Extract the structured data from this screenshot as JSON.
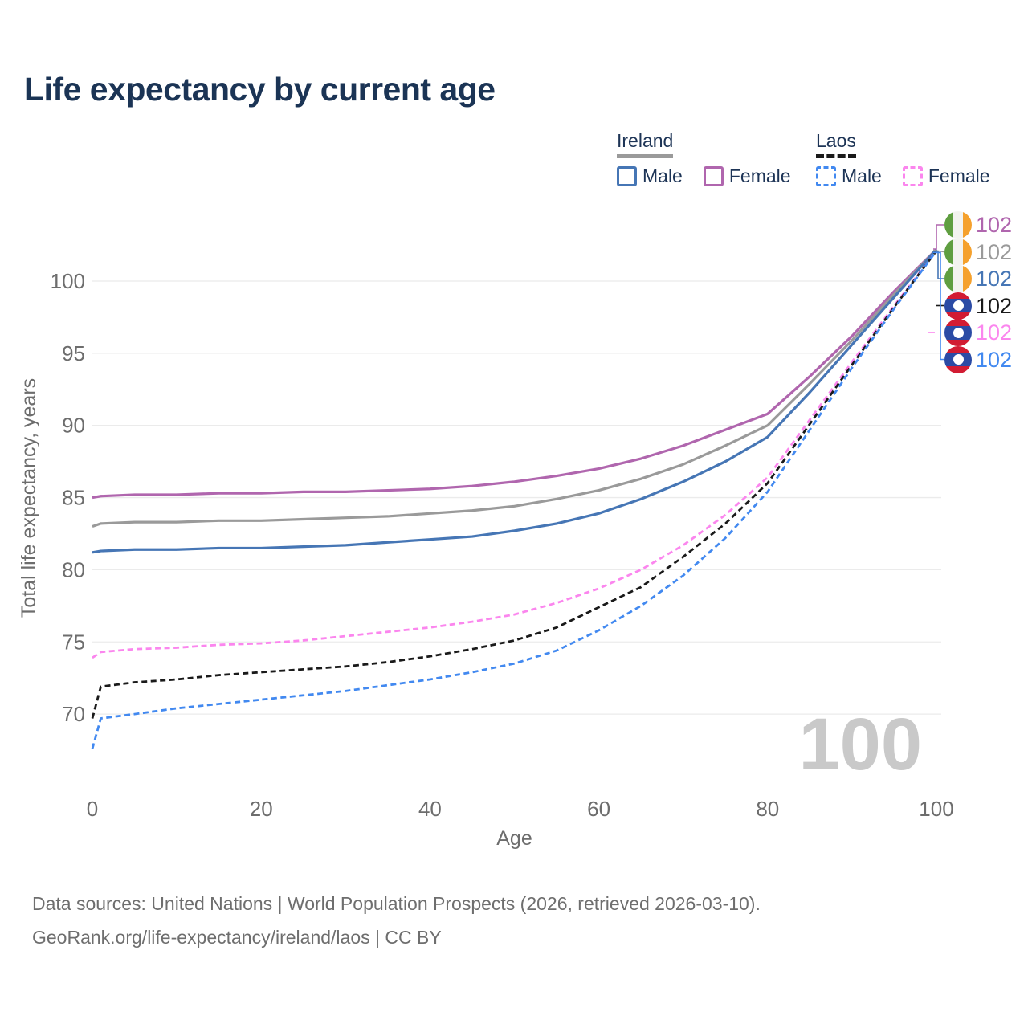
{
  "header": {
    "title": "Life expectancy by current age"
  },
  "legend": {
    "groups": [
      {
        "label": "Ireland",
        "underline_color": "#9a9a9a",
        "underline_style": "solid",
        "items": [
          {
            "label": "Male",
            "color": "#4676b5",
            "dashed": false
          },
          {
            "label": "Female",
            "color": "#b066ae",
            "dashed": false
          }
        ]
      },
      {
        "label": "Laos",
        "underline_color": "#1a1a1a",
        "underline_style": "dashed",
        "items": [
          {
            "label": "Male",
            "color": "#4289f0",
            "dashed": true
          },
          {
            "label": "Female",
            "color": "#fb86ee",
            "dashed": true
          }
        ]
      }
    ]
  },
  "chart_data": {
    "type": "line",
    "title": "Life expectancy by current age",
    "xlabel": "Age",
    "ylabel": "Total life expectancy, years",
    "xlim": [
      0,
      100
    ],
    "ylim": [
      67,
      103
    ],
    "grid": "horizontal",
    "legend_position": "top-right",
    "watermark": "100",
    "xticks": [
      0,
      20,
      40,
      60,
      80,
      100
    ],
    "yticks": [
      70,
      75,
      80,
      85,
      90,
      95,
      100
    ],
    "x": [
      0,
      1,
      5,
      10,
      15,
      20,
      25,
      30,
      35,
      40,
      45,
      50,
      55,
      60,
      65,
      70,
      75,
      80,
      85,
      90,
      95,
      100
    ],
    "series": [
      {
        "id": "ireland-female",
        "country": "Ireland",
        "sex": "Female",
        "color": "#b066ae",
        "dash": false,
        "values": [
          85.0,
          85.1,
          85.2,
          85.2,
          85.3,
          85.3,
          85.4,
          85.4,
          85.5,
          85.6,
          85.8,
          86.1,
          86.5,
          87.0,
          87.7,
          88.6,
          89.7,
          90.8,
          93.4,
          96.2,
          99.3,
          102.2
        ]
      },
      {
        "id": "ireland-both",
        "country": "Ireland",
        "sex": "Both sexes",
        "color": "#9a9a9a",
        "dash": false,
        "values": [
          83.0,
          83.2,
          83.3,
          83.3,
          83.4,
          83.4,
          83.5,
          83.6,
          83.7,
          83.9,
          84.1,
          84.4,
          84.9,
          85.5,
          86.3,
          87.3,
          88.6,
          90.0,
          92.9,
          95.9,
          99.1,
          102.2
        ]
      },
      {
        "id": "ireland-male",
        "country": "Ireland",
        "sex": "Male",
        "color": "#4676b5",
        "dash": false,
        "values": [
          81.2,
          81.3,
          81.4,
          81.4,
          81.5,
          81.5,
          81.6,
          81.7,
          81.9,
          82.1,
          82.3,
          82.7,
          83.2,
          83.9,
          84.9,
          86.1,
          87.5,
          89.2,
          92.3,
          95.6,
          98.9,
          102.2
        ]
      },
      {
        "id": "laos-female",
        "country": "Laos",
        "sex": "Female",
        "color": "#fb86ee",
        "dash": true,
        "values": [
          73.9,
          74.3,
          74.5,
          74.6,
          74.8,
          74.9,
          75.1,
          75.4,
          75.7,
          76.0,
          76.4,
          76.9,
          77.7,
          78.7,
          80.0,
          81.7,
          83.8,
          86.4,
          90.4,
          94.4,
          98.3,
          102.1
        ]
      },
      {
        "id": "laos-both",
        "country": "Laos",
        "sex": "Both sexes",
        "color": "#1a1a1a",
        "dash": true,
        "values": [
          69.7,
          71.9,
          72.2,
          72.4,
          72.7,
          72.9,
          73.1,
          73.3,
          73.6,
          74.0,
          74.5,
          75.1,
          76.0,
          77.4,
          78.8,
          80.9,
          83.2,
          86.0,
          90.1,
          94.2,
          98.2,
          102.1
        ]
      },
      {
        "id": "laos-male",
        "country": "Laos",
        "sex": "Male",
        "color": "#4289f0",
        "dash": true,
        "values": [
          67.6,
          69.7,
          70.0,
          70.4,
          70.7,
          71.0,
          71.3,
          71.6,
          72.0,
          72.4,
          72.9,
          73.5,
          74.4,
          75.8,
          77.5,
          79.6,
          82.2,
          85.4,
          89.7,
          94.0,
          98.1,
          102.1
        ]
      }
    ]
  },
  "end_labels": [
    {
      "flag": "ireland",
      "series": "ireland-female",
      "value": "102",
      "color": "#b066ae"
    },
    {
      "flag": "ireland",
      "series": "ireland-both",
      "value": "102",
      "color": "#9a9a9a"
    },
    {
      "flag": "ireland",
      "series": "ireland-male",
      "value": "102",
      "color": "#4676b5"
    },
    {
      "flag": "laos",
      "series": "laos-both",
      "value": "102",
      "color": "#1a1a1a"
    },
    {
      "flag": "laos",
      "series": "laos-female",
      "value": "102",
      "color": "#fb86ee"
    },
    {
      "flag": "laos",
      "series": "laos-male",
      "value": "102",
      "color": "#4289f0"
    }
  ],
  "footer": {
    "line1": "Data sources: United Nations | World Population Prospects (2026, retrieved 2026-03-10).",
    "line2": "GeoRank.org/life-expectancy/ireland/laos | CC BY"
  }
}
